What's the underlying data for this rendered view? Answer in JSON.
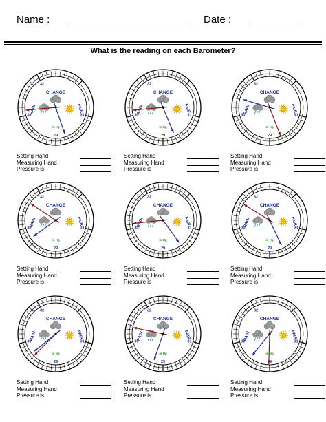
{
  "header": {
    "name_label": "Name :",
    "date_label": "Date :"
  },
  "question": "What is the reading on each Barometer?",
  "dial": {
    "change_label": "CHANGE",
    "rain_label": "RAIN",
    "fair_label": "FAIR",
    "unit_label": "in Hg",
    "tick_labels": [
      "31",
      "29",
      "30",
      "32"
    ]
  },
  "answer_labels": {
    "setting": "Setting Hand",
    "measuring": "Measuring Hand",
    "pressure": "Pressure is"
  },
  "colors": {
    "setting_hand": "#8b1a1a",
    "measuring_hand": "#1f2f8f",
    "dial_label": "#1f2f8f",
    "sun": "#f2c200",
    "cloud": "#9a9a9a",
    "rain": "#2e8b8b",
    "unit": "#2e8b2e"
  },
  "barometers": [
    {
      "setting_hand_inhg": 30.13,
      "measuring_hand_inhg": 28.75
    },
    {
      "setting_hand_inhg": 30.13,
      "measuring_hand_inhg": 28.7
    },
    {
      "setting_hand_inhg": 28.72,
      "measuring_hand_inhg": 30.42
    },
    {
      "setting_hand_inhg": 30.65,
      "measuring_hand_inhg": 29.72
    },
    {
      "setting_hand_inhg": 30.12,
      "measuring_hand_inhg": 28.52
    },
    {
      "setting_hand_inhg": 30.62,
      "measuring_hand_inhg": 28.66
    },
    {
      "setting_hand_inhg": 29.6,
      "measuring_hand_inhg": 29.68
    },
    {
      "setting_hand_inhg": 30.36,
      "measuring_hand_inhg": 29.25
    },
    {
      "setting_hand_inhg": 29.02,
      "measuring_hand_inhg": 29.52
    }
  ]
}
